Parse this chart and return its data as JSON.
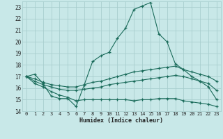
{
  "xlabel": "Humidex (Indice chaleur)",
  "xlim": [
    -0.5,
    23.5
  ],
  "ylim": [
    14,
    23.5
  ],
  "yticks": [
    14,
    15,
    16,
    17,
    18,
    19,
    20,
    21,
    22,
    23
  ],
  "xticks": [
    0,
    1,
    2,
    3,
    4,
    5,
    6,
    7,
    8,
    9,
    10,
    11,
    12,
    13,
    14,
    15,
    16,
    17,
    18,
    19,
    20,
    21,
    22,
    23
  ],
  "bg_color": "#c8e8e8",
  "grid_color": "#a8cece",
  "line_color": "#1a6b5a",
  "font_color": "#222222",
  "curves": [
    {
      "x": [
        0,
        1,
        2,
        3,
        4,
        5,
        6,
        7,
        8,
        9,
        10,
        11,
        12,
        13,
        14,
        15,
        16,
        17,
        18,
        19,
        20,
        21,
        22,
        23
      ],
      "y": [
        17.0,
        17.2,
        16.4,
        15.3,
        15.1,
        15.1,
        14.4,
        16.3,
        18.3,
        18.8,
        19.1,
        20.3,
        21.2,
        22.8,
        23.1,
        23.4,
        20.7,
        20.0,
        18.1,
        17.6,
        17.0,
        16.6,
        16.1,
        15.0
      ]
    },
    {
      "x": [
        0,
        1,
        2,
        3,
        4,
        5,
        6,
        7,
        8,
        9,
        10,
        11,
        12,
        13,
        14,
        15,
        16,
        17,
        18,
        19,
        20,
        21,
        22,
        23
      ],
      "y": [
        17.0,
        16.8,
        16.5,
        16.3,
        16.2,
        16.1,
        16.1,
        16.3,
        16.5,
        16.6,
        16.8,
        17.0,
        17.2,
        17.4,
        17.5,
        17.6,
        17.7,
        17.8,
        17.9,
        17.6,
        17.4,
        17.2,
        17.0,
        16.6
      ]
    },
    {
      "x": [
        0,
        1,
        2,
        3,
        4,
        5,
        6,
        7,
        8,
        9,
        10,
        11,
        12,
        13,
        14,
        15,
        16,
        17,
        18,
        19,
        20,
        21,
        22,
        23
      ],
      "y": [
        17.0,
        16.6,
        16.3,
        16.1,
        15.9,
        15.8,
        15.8,
        15.9,
        16.0,
        16.1,
        16.3,
        16.4,
        16.5,
        16.6,
        16.7,
        16.8,
        16.9,
        17.0,
        17.1,
        17.0,
        16.8,
        16.6,
        16.4,
        15.8
      ]
    },
    {
      "x": [
        0,
        1,
        2,
        3,
        4,
        5,
        6,
        7,
        8,
        9,
        10,
        11,
        12,
        13,
        14,
        15,
        16,
        17,
        18,
        19,
        20,
        21,
        22,
        23
      ],
      "y": [
        17.0,
        16.4,
        16.1,
        15.7,
        15.4,
        15.2,
        14.9,
        15.0,
        15.0,
        15.0,
        15.0,
        15.0,
        15.0,
        14.9,
        15.0,
        15.0,
        15.1,
        15.1,
        15.1,
        14.9,
        14.8,
        14.7,
        14.6,
        14.4
      ]
    }
  ]
}
